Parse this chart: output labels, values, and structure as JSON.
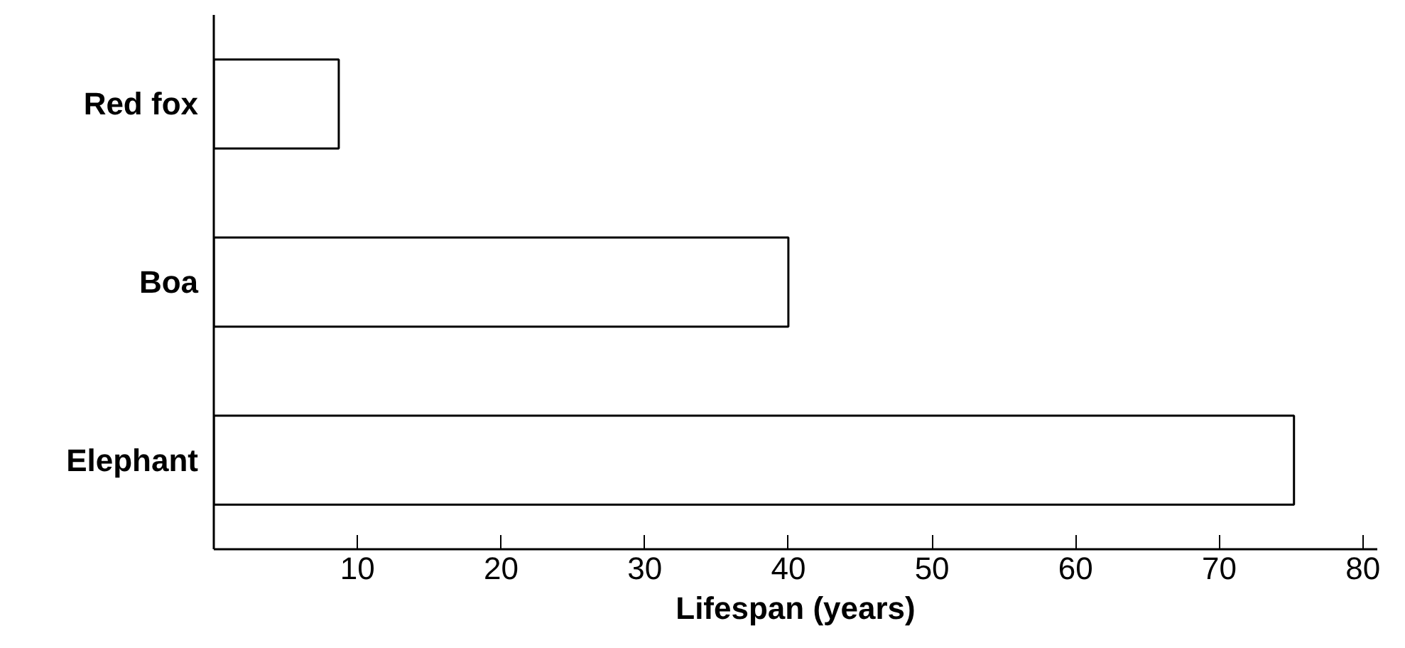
{
  "chart_data": {
    "type": "bar",
    "orientation": "horizontal",
    "xlabel": "Lifespan (years)",
    "categories": [
      "Red fox",
      "Boa",
      "Elephant"
    ],
    "values": [
      8.7,
      40,
      75.2
    ],
    "color": "#ffffff",
    "xlim": [
      0,
      81
    ],
    "xticks": [
      10,
      20,
      30,
      40,
      50,
      60,
      70,
      80
    ],
    "grid": false
  }
}
